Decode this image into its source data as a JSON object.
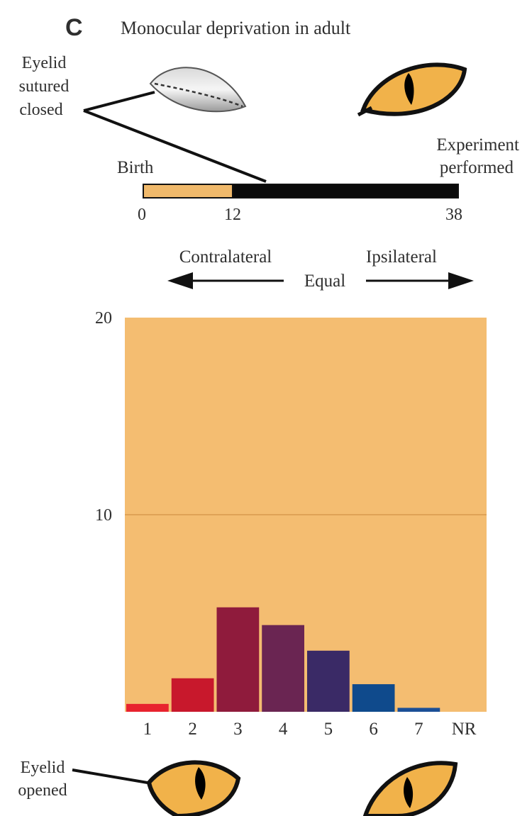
{
  "panel": {
    "letter": "C",
    "title": "Monocular deprivation in adult"
  },
  "timeline": {
    "left_label": "Birth",
    "right_label_line1": "Experiment",
    "right_label_line2": "performed",
    "ticks": [
      "0",
      "12",
      "38"
    ],
    "colors": {
      "open_period": "#f0b96b",
      "closed_period": "#0a0a0a"
    }
  },
  "eye_labels": {
    "sutured_line1": "Eyelid",
    "sutured_line2": "sutured",
    "sutured_line3": "closed",
    "opened_line1": "Eyelid",
    "opened_line2": "opened"
  },
  "dominance_arrow": {
    "left": "Contralateral",
    "center": "Equal",
    "right": "Ipsilateral"
  },
  "chart_data": {
    "type": "bar",
    "categories": [
      "1",
      "2",
      "3",
      "4",
      "5",
      "6",
      "7",
      "NR"
    ],
    "values": [
      0.4,
      1.7,
      5.3,
      4.4,
      3.1,
      1.4,
      0.2,
      0
    ],
    "ylim": [
      0,
      20
    ],
    "yticks": [
      "10",
      "20"
    ],
    "grid": true,
    "background_color": "#f4bd71",
    "bar_colors": [
      "#e8232e",
      "#c8182c",
      "#8f1b3c",
      "#6a2552",
      "#3a2a66",
      "#0f4a8c",
      "#1b4f96",
      "#1b4f96"
    ]
  }
}
